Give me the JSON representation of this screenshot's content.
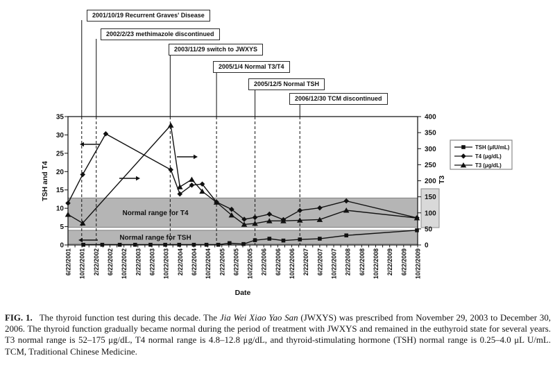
{
  "chart_data": {
    "type": "line",
    "xlabel": "Date",
    "ylabel_left": "TSH and T4",
    "ylabel_right": "T3",
    "x_ticks": [
      "6/22/2001",
      "10/22/2001",
      "2/22/2002",
      "6/22/2002",
      "10/22/2002",
      "2/22/2003",
      "6/22/2003",
      "10/22/2003",
      "2/22/2004",
      "6/22/2004",
      "10/22/2004",
      "2/22/2005",
      "6/22/2005",
      "10/22/2005",
      "2/22/2006",
      "6/22/2006",
      "10/22/2006",
      "2/22/2007",
      "6/22/2007",
      "10/22/2007",
      "2/22/2008",
      "6/22/2008",
      "10/22/2008",
      "2/22/2009",
      "6/22/2009",
      "10/22/2009"
    ],
    "y_left_axis": {
      "min": 0,
      "max": 35,
      "step": 5,
      "tick_labels": [
        "0",
        "5",
        "10",
        "15",
        "20",
        "25",
        "30",
        "35"
      ]
    },
    "y_right_axis": {
      "min": 0,
      "max": 400,
      "step": 50,
      "tick_labels": [
        "0",
        "50",
        "100",
        "150",
        "200",
        "250",
        "300",
        "350",
        "400"
      ]
    },
    "series": [
      {
        "name": "TSH (μIU/mL)",
        "axis": "left",
        "marker": "square",
        "color": "#111111",
        "points": [
          [
            1.1,
            0.05
          ],
          [
            2.45,
            0.05
          ],
          [
            3.7,
            0.05
          ],
          [
            4.8,
            0.05
          ],
          [
            5.9,
            0.05
          ],
          [
            6.95,
            0.05
          ],
          [
            7.95,
            0.05
          ],
          [
            9.0,
            0.05
          ],
          [
            9.9,
            0.05
          ],
          [
            10.75,
            0.05
          ],
          [
            11.55,
            0.5
          ],
          [
            12.55,
            0.25
          ],
          [
            13.37,
            1.3
          ],
          [
            14.4,
            1.7
          ],
          [
            15.4,
            1.2
          ],
          [
            16.58,
            1.5
          ],
          [
            18.0,
            1.7
          ],
          [
            19.9,
            2.6
          ],
          [
            24.95,
            4.0
          ]
        ]
      },
      {
        "name": "T4 (μg/dL)",
        "axis": "left",
        "marker": "diamond",
        "color": "#111111",
        "points": [
          [
            0,
            11.4
          ],
          [
            1.05,
            19.2
          ],
          [
            2.7,
            30.3
          ],
          [
            7.35,
            20.5
          ],
          [
            8.0,
            13.9
          ],
          [
            8.85,
            16.3
          ],
          [
            9.6,
            16.6
          ],
          [
            10.62,
            11.7
          ],
          [
            11.7,
            9.7
          ],
          [
            12.6,
            7.0
          ],
          [
            13.37,
            7.5
          ],
          [
            14.4,
            8.4
          ],
          [
            15.4,
            6.9
          ],
          [
            16.58,
            9.4
          ],
          [
            18.0,
            10.1
          ],
          [
            19.9,
            12.0
          ],
          [
            24.95,
            7.4
          ]
        ]
      },
      {
        "name": "T3 (μg/dL)",
        "axis": "right",
        "marker": "triangle",
        "color": "#111111",
        "points": [
          [
            0,
            95
          ],
          [
            1.05,
            68
          ],
          [
            7.35,
            373
          ],
          [
            8.0,
            181
          ],
          [
            8.85,
            204
          ],
          [
            9.6,
            167
          ],
          [
            10.62,
            133
          ],
          [
            11.7,
            93
          ],
          [
            12.6,
            64
          ],
          [
            13.37,
            67
          ],
          [
            14.4,
            75
          ],
          [
            15.4,
            75
          ],
          [
            16.58,
            77
          ],
          [
            18.0,
            79
          ],
          [
            19.9,
            108
          ],
          [
            24.95,
            84
          ]
        ]
      }
    ],
    "normal_range_bands": [
      {
        "label": "Normal range for T4",
        "axis": "left",
        "from": 4.8,
        "to": 12.8,
        "fill": "#b5b5b5"
      },
      {
        "label": "Normal range for TSH",
        "axis": "left",
        "from": 0.25,
        "to": 4.0,
        "fill": "#b5b5b5"
      }
    ],
    "events": [
      {
        "label": "2001/10/19 Recurrent Graves' Disease",
        "x_index": 0.98
      },
      {
        "label": "2002/2/23 methimazole discontinued",
        "x_index": 2.02
      },
      {
        "label": "2003/11/29 switch to JWXYS",
        "x_index": 7.31
      },
      {
        "label": "2005/1/4 Normal T3/T4",
        "x_index": 10.62
      },
      {
        "label": "2005/12/5 Normal TSH",
        "x_index": 13.37
      },
      {
        "label": "2006/12/30 TCM discontinued",
        "x_index": 16.58
      }
    ],
    "legend": {
      "position": "right",
      "entries": [
        "TSH (μIU/mL)",
        "T4 (μg/dL)",
        "T3 (μg/dL)"
      ]
    },
    "grid": "off"
  },
  "caption": {
    "fig_label": "FIG. 1.",
    "text_before_italic": "The thyroid function test during this decade. The ",
    "italic_text": "Jia Wei Xiao Yao San",
    "text_after_italic": " (JWXYS) was prescribed from November 29, 2003 to December 30, 2006. The thyroid function gradually became normal during the period of treatment with JWXYS and remained in the euthyroid state for several years. T3 normal range is 52–175 μg/dL, T4 normal range is 4.8–12.8 μg/dL, and thyroid-stimulating hormone (TSH) normal range is 0.25–4.0 μL U/mL. TCM, Traditional Chinese Medicine."
  },
  "colors": {
    "series": "#111111",
    "band_fill": "#b5b5b5",
    "band_stroke": "#7d7d7d",
    "frame": "#1a1a1a",
    "legend_border": "#888888",
    "side_box_fill": "#d9d9d9"
  }
}
